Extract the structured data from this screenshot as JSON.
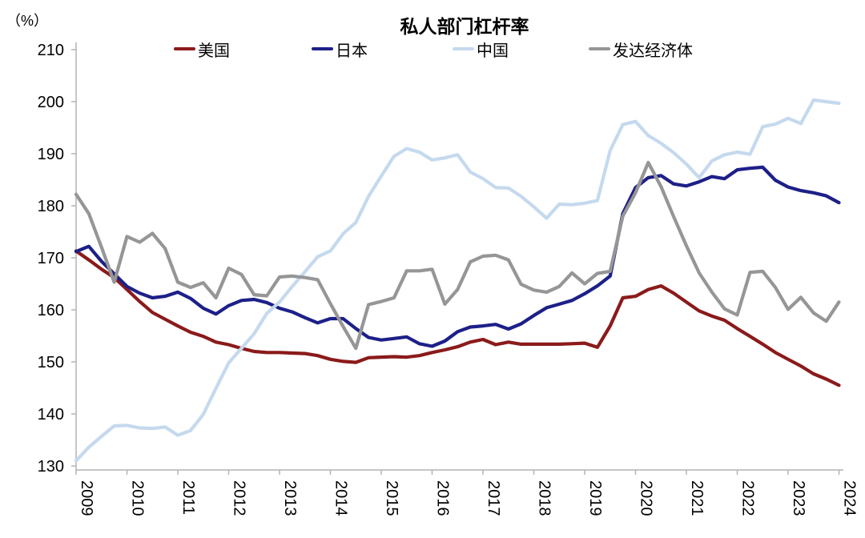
{
  "header": {
    "unit_label": "（%）",
    "title": "私人部门杠杆率"
  },
  "chart_data": {
    "type": "line",
    "title": "私人部门杠杆率",
    "unit": "（%）",
    "legend_position": "top",
    "grid": false,
    "ylim": [
      130,
      210
    ],
    "y_ticks": [
      210,
      200,
      190,
      180,
      170,
      160,
      150,
      140,
      130
    ],
    "x_tick_labels": [
      "2009",
      "2010",
      "2011",
      "2012",
      "2013",
      "2014",
      "2015",
      "2016",
      "2017",
      "2018",
      "2019",
      "2020",
      "2021",
      "2022",
      "2023",
      "2024"
    ],
    "x_start": "2009Q1",
    "x_end": "2024Q1",
    "frequency": "quarterly",
    "series": [
      {
        "key": "us",
        "name": "美国",
        "color": "#8B1A1A",
        "values": [
          171.3,
          169.6,
          167.8,
          166.2,
          163.9,
          161.6,
          159.5,
          158.2,
          156.9,
          155.7,
          154.9,
          153.8,
          153.3,
          152.6,
          152.0,
          151.8,
          151.8,
          151.7,
          151.6,
          151.2,
          150.5,
          150.1,
          149.9,
          150.8,
          150.9,
          151.0,
          150.9,
          151.2,
          151.8,
          152.3,
          152.9,
          153.8,
          154.3,
          153.3,
          153.8,
          153.4,
          153.4,
          153.4,
          153.4,
          153.5,
          153.6,
          152.8,
          156.9,
          162.3,
          162.6,
          163.9,
          164.6,
          163.2,
          161.5,
          159.8,
          158.8,
          158.0,
          156.4,
          154.9,
          153.4,
          151.8,
          150.5,
          149.2,
          147.7,
          146.7,
          145.5
        ]
      },
      {
        "key": "japan",
        "name": "日本",
        "color": "#1D2088",
        "values": [
          171.2,
          172.2,
          169.3,
          166.9,
          164.5,
          163.2,
          162.3,
          162.6,
          163.4,
          162.2,
          160.3,
          159.2,
          160.8,
          161.8,
          162.0,
          161.4,
          160.3,
          159.6,
          158.5,
          157.5,
          158.3,
          158.3,
          156.4,
          154.7,
          154.2,
          154.5,
          154.8,
          153.5,
          153.0,
          154.0,
          155.8,
          156.7,
          156.9,
          157.2,
          156.3,
          157.3,
          158.9,
          160.4,
          161.1,
          161.8,
          163.1,
          164.6,
          166.5,
          178.5,
          183.5,
          185.4,
          185.8,
          184.2,
          183.8,
          184.6,
          185.6,
          185.2,
          186.9,
          187.2,
          187.4,
          184.9,
          183.6,
          182.9,
          182.5,
          181.9,
          180.6
        ]
      },
      {
        "key": "china",
        "name": "中国",
        "color": "#C5D9EE",
        "values": [
          131.0,
          133.6,
          135.7,
          137.7,
          137.8,
          137.3,
          137.2,
          137.5,
          135.9,
          136.8,
          139.9,
          144.9,
          149.8,
          152.6,
          155.4,
          159.3,
          161.5,
          164.5,
          167.3,
          170.2,
          171.3,
          174.6,
          176.8,
          181.8,
          185.7,
          189.5,
          191.0,
          190.3,
          188.8,
          189.2,
          189.8,
          186.5,
          185.2,
          183.5,
          183.4,
          181.8,
          179.8,
          177.6,
          180.3,
          180.2,
          180.5,
          181.0,
          190.6,
          195.6,
          196.2,
          193.5,
          192.0,
          190.2,
          188.0,
          185.4,
          188.6,
          189.8,
          190.3,
          189.9,
          195.2,
          195.7,
          196.8,
          195.8,
          200.3,
          200.0,
          199.7
        ]
      },
      {
        "key": "developed",
        "name": "发达经济体",
        "color": "#969696",
        "values": [
          182.2,
          178.5,
          172.0,
          165.3,
          174.1,
          173.0,
          174.7,
          171.8,
          165.3,
          164.3,
          165.2,
          162.3,
          168.0,
          166.8,
          162.9,
          162.7,
          166.3,
          166.5,
          166.2,
          165.8,
          161.2,
          156.8,
          152.6,
          161.0,
          161.6,
          162.3,
          167.5,
          167.5,
          167.8,
          161.1,
          163.9,
          169.2,
          170.3,
          170.5,
          169.6,
          164.9,
          163.8,
          163.4,
          164.5,
          167.1,
          165.0,
          167.0,
          167.4,
          178.0,
          182.5,
          188.3,
          183.7,
          177.9,
          172.3,
          167.1,
          163.4,
          160.2,
          159.0,
          167.2,
          167.4,
          164.3,
          160.1,
          162.4,
          159.4,
          157.8,
          161.5
        ]
      }
    ]
  }
}
